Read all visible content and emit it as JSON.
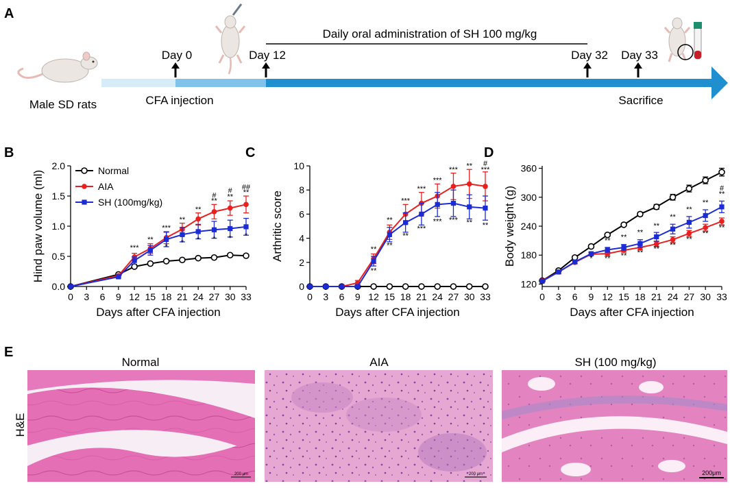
{
  "panel_labels": {
    "a": "A",
    "b": "B",
    "c": "C",
    "d": "D",
    "e": "E"
  },
  "timeline": {
    "subject": "Male SD rats",
    "day0": "Day 0",
    "day12": "Day 12",
    "day32": "Day 32",
    "day33": "Day 33",
    "cfa": "CFA injection",
    "sacrifice": "Sacrifice",
    "administration": "Daily oral administration of SH 100 mg/kg"
  },
  "colors": {
    "normal": "#000000",
    "aia": "#e8201f",
    "sh": "#1b2bd6"
  },
  "chart_data": [
    {
      "id": "B",
      "type": "line",
      "title": "",
      "xlabel": "Days after CFA injection",
      "ylabel": "Hind paw volume (ml)",
      "x": [
        0,
        3,
        6,
        9,
        12,
        15,
        18,
        21,
        24,
        27,
        30,
        33
      ],
      "xticks": [
        "0",
        "3",
        "6",
        "9",
        "12",
        "15",
        "18",
        "21",
        "24",
        "27",
        "30",
        "33"
      ],
      "yticks": [
        "0.0",
        "0.5",
        "1.0",
        "1.5",
        "2.0"
      ],
      "ylim": [
        0,
        2.0
      ],
      "legend": [
        "Normal",
        "AIA",
        "SH (100mg/kg)"
      ],
      "series": [
        {
          "name": "Normal",
          "x": [
            0,
            9,
            12,
            15,
            18,
            21,
            24,
            27,
            30,
            33
          ],
          "values": [
            0,
            0.2,
            0.33,
            0.38,
            0.42,
            0.44,
            0.47,
            0.48,
            0.52,
            0.51
          ],
          "err": [
            0,
            0.02,
            0.02,
            0.02,
            0.02,
            0.02,
            0.02,
            0.02,
            0.02,
            0.02
          ]
        },
        {
          "name": "AIA",
          "x": [
            0,
            9,
            12,
            15,
            18,
            21,
            24,
            27,
            30,
            33
          ],
          "values": [
            0,
            0.18,
            0.49,
            0.63,
            0.81,
            0.95,
            1.12,
            1.24,
            1.3,
            1.36
          ],
          "err": [
            0,
            0.02,
            0.06,
            0.08,
            0.1,
            0.1,
            0.1,
            0.12,
            0.12,
            0.14
          ]
        },
        {
          "name": "SH (100mg/kg)",
          "x": [
            0,
            9,
            12,
            15,
            18,
            21,
            24,
            27,
            30,
            33
          ],
          "values": [
            0,
            0.16,
            0.43,
            0.6,
            0.78,
            0.86,
            0.91,
            0.94,
            0.96,
            0.99
          ],
          "err": [
            0,
            0.02,
            0.06,
            0.08,
            0.12,
            0.12,
            0.12,
            0.14,
            0.14,
            0.14
          ]
        }
      ],
      "annotations": [
        {
          "x": 12,
          "y": 0.6,
          "text": "***"
        },
        {
          "x": 15,
          "y": 0.74,
          "text": "**"
        },
        {
          "x": 18,
          "y": 0.93,
          "text": "***"
        },
        {
          "x": 18,
          "y": 0.62,
          "text": "*"
        },
        {
          "x": 21,
          "y": 1.07,
          "text": "**"
        },
        {
          "x": 21,
          "y": 0.69,
          "text": "*"
        },
        {
          "x": 24,
          "y": 1.24,
          "text": "**"
        },
        {
          "x": 24,
          "y": 0.74,
          "text": "*"
        },
        {
          "x": 27,
          "y": 1.47,
          "text": "#"
        },
        {
          "x": 27,
          "y": 1.38,
          "text": "**"
        },
        {
          "x": 27,
          "y": 0.75,
          "text": "*"
        },
        {
          "x": 30,
          "y": 1.55,
          "text": "#"
        },
        {
          "x": 30,
          "y": 1.45,
          "text": "**"
        },
        {
          "x": 30,
          "y": 0.76,
          "text": "*"
        },
        {
          "x": 33,
          "y": 1.61,
          "text": "##"
        },
        {
          "x": 33,
          "y": 1.52,
          "text": "**"
        },
        {
          "x": 33,
          "y": 0.8,
          "text": "*"
        }
      ]
    },
    {
      "id": "C",
      "type": "line",
      "title": "",
      "xlabel": "Days after CFA injection",
      "ylabel": "Arthritic score",
      "x": [
        0,
        3,
        6,
        9,
        12,
        15,
        18,
        21,
        24,
        27,
        30,
        33
      ],
      "xticks": [
        "0",
        "3",
        "6",
        "9",
        "12",
        "15",
        "18",
        "21",
        "24",
        "27",
        "30",
        "33"
      ],
      "yticks": [
        "0",
        "2",
        "4",
        "6",
        "8",
        "10"
      ],
      "ylim": [
        0,
        10
      ],
      "series": [
        {
          "name": "Normal",
          "x": [
            0,
            3,
            6,
            9,
            12,
            15,
            18,
            21,
            24,
            27,
            30,
            33
          ],
          "values": [
            0,
            0,
            0,
            0,
            0,
            0,
            0,
            0,
            0,
            0,
            0,
            0
          ],
          "err": [
            0,
            0,
            0,
            0,
            0,
            0,
            0,
            0,
            0,
            0,
            0,
            0
          ]
        },
        {
          "name": "AIA",
          "x": [
            0,
            3,
            6,
            9,
            12,
            15,
            18,
            21,
            24,
            27,
            30,
            33
          ],
          "values": [
            0,
            0,
            0,
            0.3,
            2.3,
            4.5,
            6.0,
            6.9,
            7.5,
            8.3,
            8.5,
            8.3
          ],
          "err": [
            0,
            0,
            0,
            0.2,
            0.4,
            0.6,
            0.8,
            0.9,
            1.0,
            1.1,
            1.2,
            1.2
          ]
        },
        {
          "name": "SH (100mg/kg)",
          "x": [
            0,
            3,
            6,
            9,
            12,
            15,
            18,
            21,
            24,
            27,
            30,
            33
          ],
          "values": [
            0,
            0,
            0,
            0,
            2.1,
            4.3,
            5.3,
            6.0,
            6.8,
            6.9,
            6.6,
            6.5
          ],
          "err": [
            0,
            0,
            0,
            0,
            0.4,
            0.6,
            0.8,
            0.9,
            1.0,
            1.1,
            1.0,
            1.0
          ]
        }
      ],
      "annotations": [
        {
          "x": 12,
          "y": 2.9,
          "text": "**"
        },
        {
          "x": 12,
          "y": 1.1,
          "text": "**"
        },
        {
          "x": 15,
          "y": 5.3,
          "text": "**"
        },
        {
          "x": 15,
          "y": 3.2,
          "text": "**"
        },
        {
          "x": 18,
          "y": 6.9,
          "text": "***"
        },
        {
          "x": 18,
          "y": 4.0,
          "text": "**"
        },
        {
          "x": 21,
          "y": 7.9,
          "text": "***"
        },
        {
          "x": 21,
          "y": 4.6,
          "text": "***"
        },
        {
          "x": 24,
          "y": 8.6,
          "text": "***"
        },
        {
          "x": 24,
          "y": 5.2,
          "text": "***"
        },
        {
          "x": 27,
          "y": 9.5,
          "text": "***"
        },
        {
          "x": 27,
          "y": 5.3,
          "text": "***"
        },
        {
          "x": 30,
          "y": 9.8,
          "text": "**"
        },
        {
          "x": 30,
          "y": 5.1,
          "text": "**"
        },
        {
          "x": 33,
          "y": 10.0,
          "text": "#"
        },
        {
          "x": 33,
          "y": 9.5,
          "text": "***"
        },
        {
          "x": 33,
          "y": 4.9,
          "text": "**"
        }
      ]
    },
    {
      "id": "D",
      "type": "line",
      "title": "",
      "xlabel": "Days after CFA injection",
      "ylabel": "Body weight (g)",
      "x": [
        0,
        3,
        6,
        9,
        12,
        15,
        18,
        21,
        24,
        27,
        30,
        33
      ],
      "xticks": [
        "0",
        "3",
        "6",
        "9",
        "12",
        "15",
        "18",
        "21",
        "24",
        "27",
        "30",
        "33"
      ],
      "yticks": [
        "120",
        "180",
        "240",
        "300",
        "360"
      ],
      "ylim": [
        115,
        365
      ],
      "series": [
        {
          "name": "Normal",
          "x": [
            0,
            3,
            6,
            9,
            12,
            15,
            18,
            21,
            24,
            27,
            30,
            33
          ],
          "values": [
            127,
            148,
            175,
            198,
            222,
            243,
            265,
            280,
            300,
            318,
            335,
            352
          ],
          "err": [
            2,
            3,
            3,
            3,
            3,
            3,
            4,
            5,
            6,
            7,
            7,
            8
          ]
        },
        {
          "name": "AIA",
          "x": [
            0,
            3,
            6,
            9,
            12,
            15,
            18,
            21,
            24,
            27,
            30,
            33
          ],
          "values": [
            127,
            145,
            165,
            182,
            183,
            190,
            196,
            203,
            212,
            225,
            237,
            250
          ],
          "err": [
            2,
            3,
            3,
            3,
            4,
            4,
            5,
            5,
            6,
            6,
            7,
            7
          ]
        },
        {
          "name": "SH (100mg/kg)",
          "x": [
            0,
            3,
            6,
            9,
            12,
            15,
            18,
            21,
            24,
            27,
            30,
            33
          ],
          "values": [
            126,
            145,
            166,
            183,
            191,
            196,
            204,
            218,
            234,
            248,
            262,
            280
          ],
          "err": [
            2,
            3,
            3,
            3,
            5,
            6,
            8,
            9,
            10,
            12,
            12,
            12
          ]
        }
      ],
      "annotations": [
        {
          "x": 9,
          "y": 168,
          "text": "*"
        },
        {
          "x": 12,
          "y": 205,
          "text": "**"
        },
        {
          "x": 12,
          "y": 168,
          "text": "**"
        },
        {
          "x": 15,
          "y": 212,
          "text": "**"
        },
        {
          "x": 15,
          "y": 174,
          "text": "**"
        },
        {
          "x": 18,
          "y": 222,
          "text": "**"
        },
        {
          "x": 18,
          "y": 180,
          "text": "**"
        },
        {
          "x": 21,
          "y": 236,
          "text": "**"
        },
        {
          "x": 21,
          "y": 188,
          "text": "**"
        },
        {
          "x": 24,
          "y": 254,
          "text": "**"
        },
        {
          "x": 24,
          "y": 196,
          "text": "**"
        },
        {
          "x": 27,
          "y": 270,
          "text": "**"
        },
        {
          "x": 27,
          "y": 208,
          "text": "**"
        },
        {
          "x": 30,
          "y": 284,
          "text": "**"
        },
        {
          "x": 30,
          "y": 220,
          "text": "**"
        },
        {
          "x": 33,
          "y": 314,
          "text": "#"
        },
        {
          "x": 33,
          "y": 302,
          "text": "**"
        },
        {
          "x": 33,
          "y": 232,
          "text": "**"
        }
      ]
    }
  ],
  "histology": {
    "side_label": "H&E",
    "panels": [
      {
        "title": "Normal",
        "scale": "200 μm"
      },
      {
        "title": "AIA",
        "scale": "200 μm"
      },
      {
        "title": "SH (100 mg/kg)",
        "scale": "200μm"
      }
    ]
  }
}
